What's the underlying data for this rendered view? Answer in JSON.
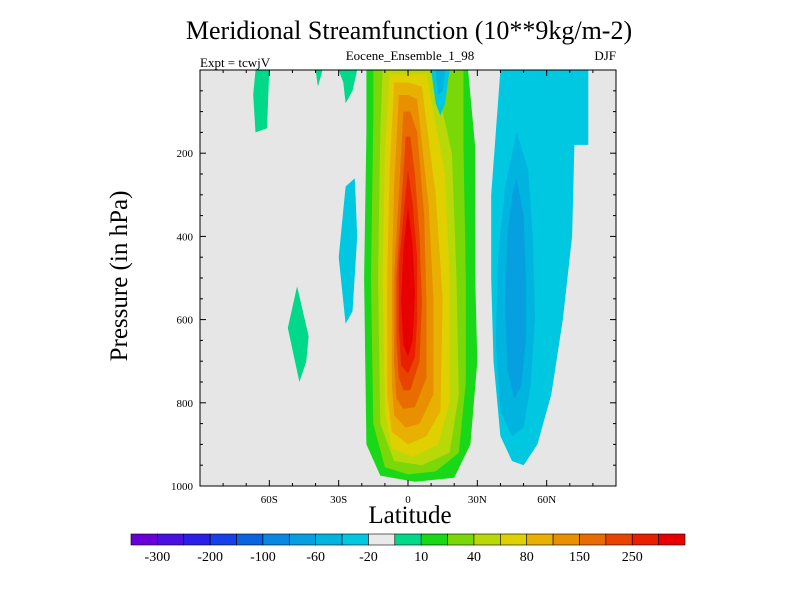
{
  "chart_data": {
    "type": "contour",
    "title": "Meridional Streamfunction (10**9kg/m-2)",
    "subtitle": "Eocene_Ensemble_1_98",
    "left_note": "Expt = tcwjV",
    "right_note": "DJF",
    "xlabel": "Latitude",
    "ylabel": "Pressure (in hPa)",
    "xlim": [
      -90,
      90
    ],
    "ylim": [
      1000,
      0
    ],
    "x_ticks": [
      {
        "value": -60,
        "label": "60S"
      },
      {
        "value": -30,
        "label": "30S"
      },
      {
        "value": 0,
        "label": "0"
      },
      {
        "value": 30,
        "label": "30N"
      },
      {
        "value": 60,
        "label": "60N"
      }
    ],
    "y_ticks": [
      {
        "value": 200,
        "label": "200"
      },
      {
        "value": 400,
        "label": "400"
      },
      {
        "value": 600,
        "label": "600"
      },
      {
        "value": 800,
        "label": "800"
      },
      {
        "value": 1000,
        "label": "1000"
      }
    ],
    "background_color": "#e6e6e6",
    "colorbar": {
      "colors": [
        "#6a00d8",
        "#4a10e0",
        "#2a20e8",
        "#1840e8",
        "#0a64e0",
        "#0888e0",
        "#06a0e0",
        "#00b4e0",
        "#00c8e0",
        "#eaeaea",
        "#00d88a",
        "#18d818",
        "#7ad808",
        "#b8d808",
        "#e0d000",
        "#e8b000",
        "#e89000",
        "#e86c00",
        "#e84400",
        "#e82000",
        "#e80000"
      ],
      "labels": [
        "-300",
        "-200",
        "-100",
        "-60",
        "-20",
        "10",
        "40",
        "80",
        "150",
        "250"
      ]
    },
    "features": [
      {
        "kind": "positive cell",
        "center_lat": 0,
        "center_pressure": 650,
        "peak": ">250",
        "lat_range": [
          -18,
          30
        ],
        "pressure_range": [
          0,
          990
        ]
      },
      {
        "kind": "negative cell",
        "center_lat": 48,
        "center_pressure": 650,
        "min": "-100",
        "lat_range": [
          36,
          80
        ],
        "pressure_range": [
          0,
          950
        ]
      },
      {
        "kind": "negative cell",
        "center_lat": 15,
        "center_pressure": 50,
        "min": "-60",
        "lat_range": [
          10,
          18
        ],
        "pressure_range": [
          0,
          120
        ]
      },
      {
        "kind": "negative cell",
        "center_lat": -27,
        "center_pressure": 450,
        "min": "-20",
        "lat_range": [
          -30,
          -22
        ],
        "pressure_range": [
          280,
          610
        ]
      },
      {
        "kind": "positive cell",
        "center_lat": -47,
        "center_pressure": 640,
        "peak": "10",
        "lat_range": [
          -52,
          -42
        ],
        "pressure_range": [
          520,
          750
        ]
      },
      {
        "kind": "positive cell",
        "center_lat": -65,
        "center_pressure": 60,
        "peak": "10",
        "lat_range": [
          -70,
          -60
        ],
        "pressure_range": [
          0,
          150
        ]
      }
    ]
  }
}
